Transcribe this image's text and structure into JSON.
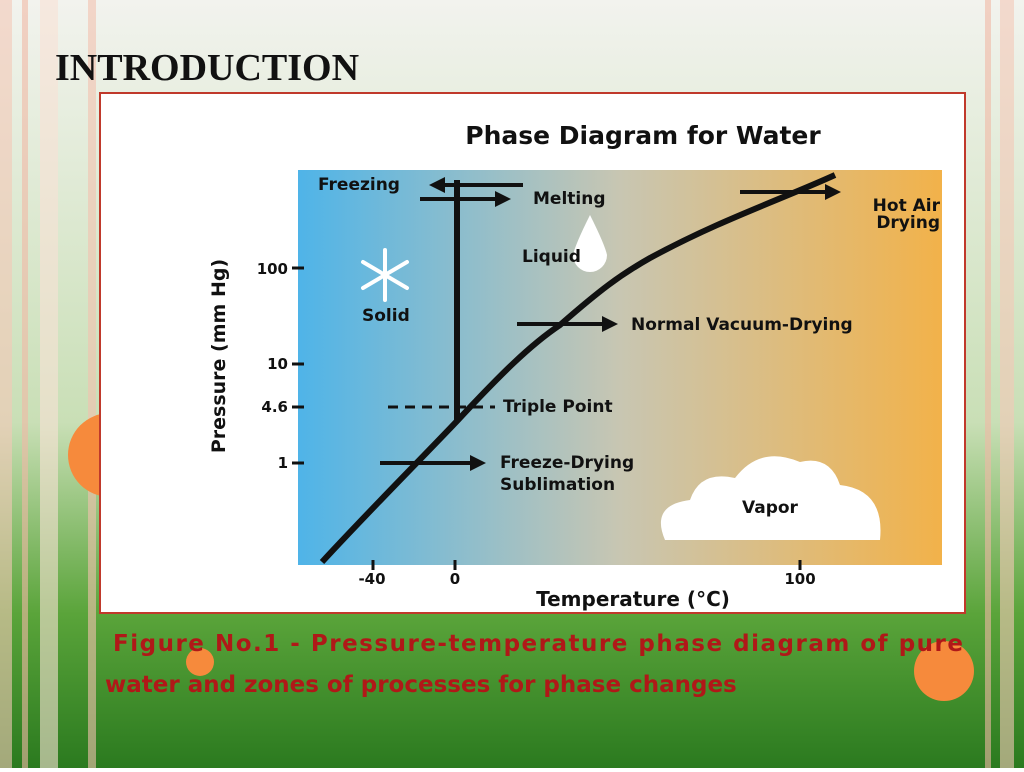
{
  "slide": {
    "title": "INTRODUCTION",
    "caption": [
      "Figure No.1 - Pressure-temperature phase diagram of pure",
      "water and zones of processes for phase changes"
    ]
  },
  "figure": {
    "title": "Phase Diagram for Water",
    "y_axis": {
      "label": "Pressure (mm Hg)",
      "ticks": [
        100,
        10,
        4.6,
        1
      ]
    },
    "x_axis": {
      "label": "Temperature (°C)",
      "ticks": [
        -40,
        0,
        100
      ]
    },
    "labels": {
      "freezing": "Freezing",
      "melting": "Melting",
      "hot_air": [
        "Hot Air",
        "Drying"
      ],
      "liquid": "Liquid",
      "solid": "Solid",
      "vacuum": "Normal Vacuum-Drying",
      "triple": "Triple Point",
      "freeze_drying": [
        "Freeze-Drying",
        "Sublimation"
      ],
      "vapor": "Vapor"
    }
  }
}
